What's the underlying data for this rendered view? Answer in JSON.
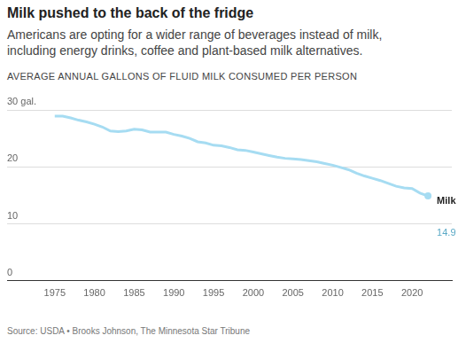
{
  "chart_data": {
    "type": "line",
    "title": "Milk pushed to the back of the fridge",
    "subtitle": "Americans are opting for a wider range of beverages instead of milk, including energy drinks, coffee and plant-based milk alternatives.",
    "y_label": "AVERAGE ANNUAL GALLONS OF FLUID MILK CONSUMED PER PERSON",
    "source": "Source: USDA • Brooks Johnson, The Minnesota Star Tribune",
    "x": [
      1975,
      1976,
      1977,
      1978,
      1979,
      1980,
      1981,
      1982,
      1983,
      1984,
      1985,
      1986,
      1987,
      1988,
      1989,
      1990,
      1991,
      1992,
      1993,
      1994,
      1995,
      1996,
      1997,
      1998,
      1999,
      2000,
      2001,
      2002,
      2003,
      2004,
      2005,
      2006,
      2007,
      2008,
      2009,
      2010,
      2011,
      2012,
      2013,
      2014,
      2015,
      2016,
      2017,
      2018,
      2019,
      2020,
      2021,
      2022
    ],
    "series": [
      {
        "name": "Milk",
        "color": "#a6dcf2",
        "values": [
          28.9,
          28.9,
          28.6,
          28.2,
          27.9,
          27.5,
          27.0,
          26.3,
          26.2,
          26.3,
          26.6,
          26.5,
          26.1,
          26.1,
          26.1,
          25.7,
          25.4,
          25.0,
          24.4,
          24.2,
          23.8,
          23.7,
          23.4,
          23.0,
          22.9,
          22.6,
          22.3,
          22.0,
          21.7,
          21.5,
          21.4,
          21.3,
          21.1,
          20.9,
          20.6,
          20.3,
          19.9,
          19.5,
          18.9,
          18.4,
          18.0,
          17.6,
          17.1,
          16.6,
          16.3,
          16.2,
          15.4,
          14.9
        ]
      }
    ],
    "annotations": [
      {
        "text": "14.9",
        "x": 2022,
        "y": 14.9,
        "color": "#5aa9c6"
      }
    ],
    "xlim": [
      1969,
      2025
    ],
    "xticks": [
      1975,
      1980,
      1985,
      1990,
      1995,
      2000,
      2005,
      2010,
      2015,
      2020
    ],
    "ylim": [
      0,
      30
    ],
    "yticks": [
      0,
      10,
      20,
      {
        "value": 30,
        "label": "30 gal."
      }
    ],
    "grid": true
  }
}
